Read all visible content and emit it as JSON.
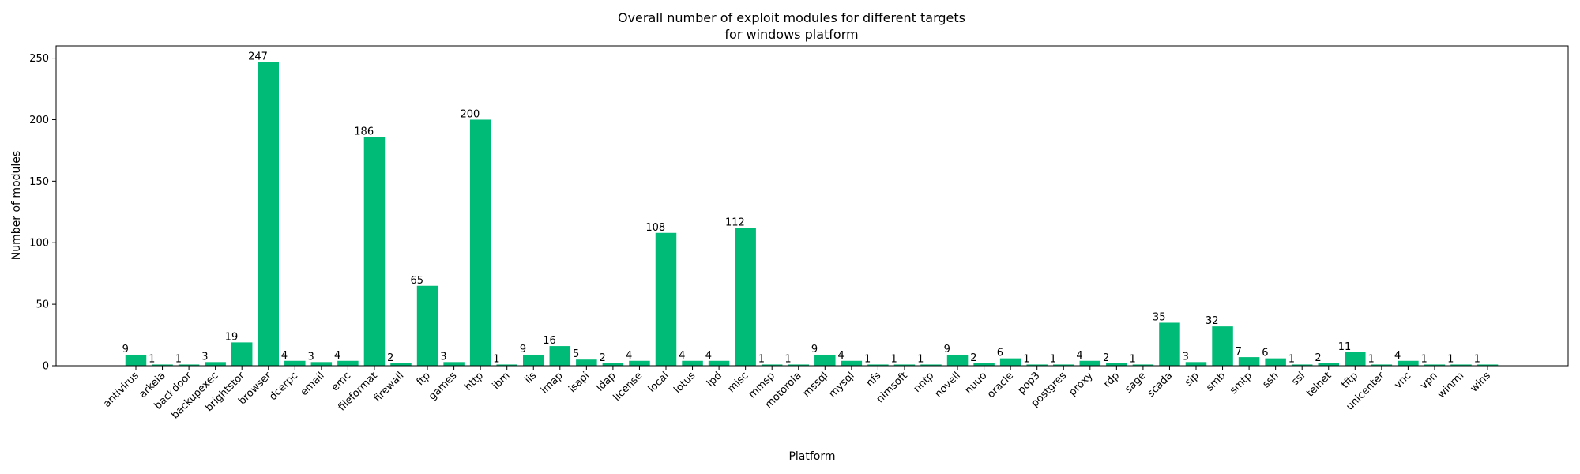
{
  "chart_data": {
    "type": "bar",
    "title": "Overall number of exploit modules for different targets",
    "subtitle": "for windows platform",
    "xlabel": "Platform",
    "ylabel": "Number of modules",
    "ylim": [
      0,
      260
    ],
    "yticks": [
      0,
      50,
      100,
      150,
      200,
      250
    ],
    "grid": false,
    "bar_color": "#00bb77",
    "categories": [
      "antivirus",
      "arkeia",
      "backdoor",
      "backupexec",
      "brightstor",
      "browser",
      "dcerpc",
      "email",
      "emc",
      "fileformat",
      "firewall",
      "ftp",
      "games",
      "http",
      "ibm",
      "iis",
      "imap",
      "isapi",
      "ldap",
      "license",
      "local",
      "lotus",
      "lpd",
      "misc",
      "mmsp",
      "motorola",
      "mssql",
      "mysql",
      "nfs",
      "nimsoft",
      "nntp",
      "novell",
      "nuuo",
      "oracle",
      "pop3",
      "postgres",
      "proxy",
      "rdp",
      "sage",
      "scada",
      "sip",
      "smb",
      "smtp",
      "ssh",
      "ssl",
      "telnet",
      "tftp",
      "unicenter",
      "vnc",
      "vpn",
      "winrm",
      "wins"
    ],
    "values": [
      9,
      1,
      1,
      3,
      19,
      247,
      4,
      3,
      4,
      186,
      2,
      65,
      3,
      200,
      1,
      9,
      16,
      5,
      2,
      4,
      108,
      4,
      4,
      112,
      1,
      1,
      9,
      4,
      1,
      1,
      1,
      9,
      2,
      6,
      1,
      1,
      4,
      2,
      1,
      35,
      3,
      32,
      7,
      6,
      1,
      2,
      11,
      1,
      4,
      1,
      1,
      1
    ]
  }
}
